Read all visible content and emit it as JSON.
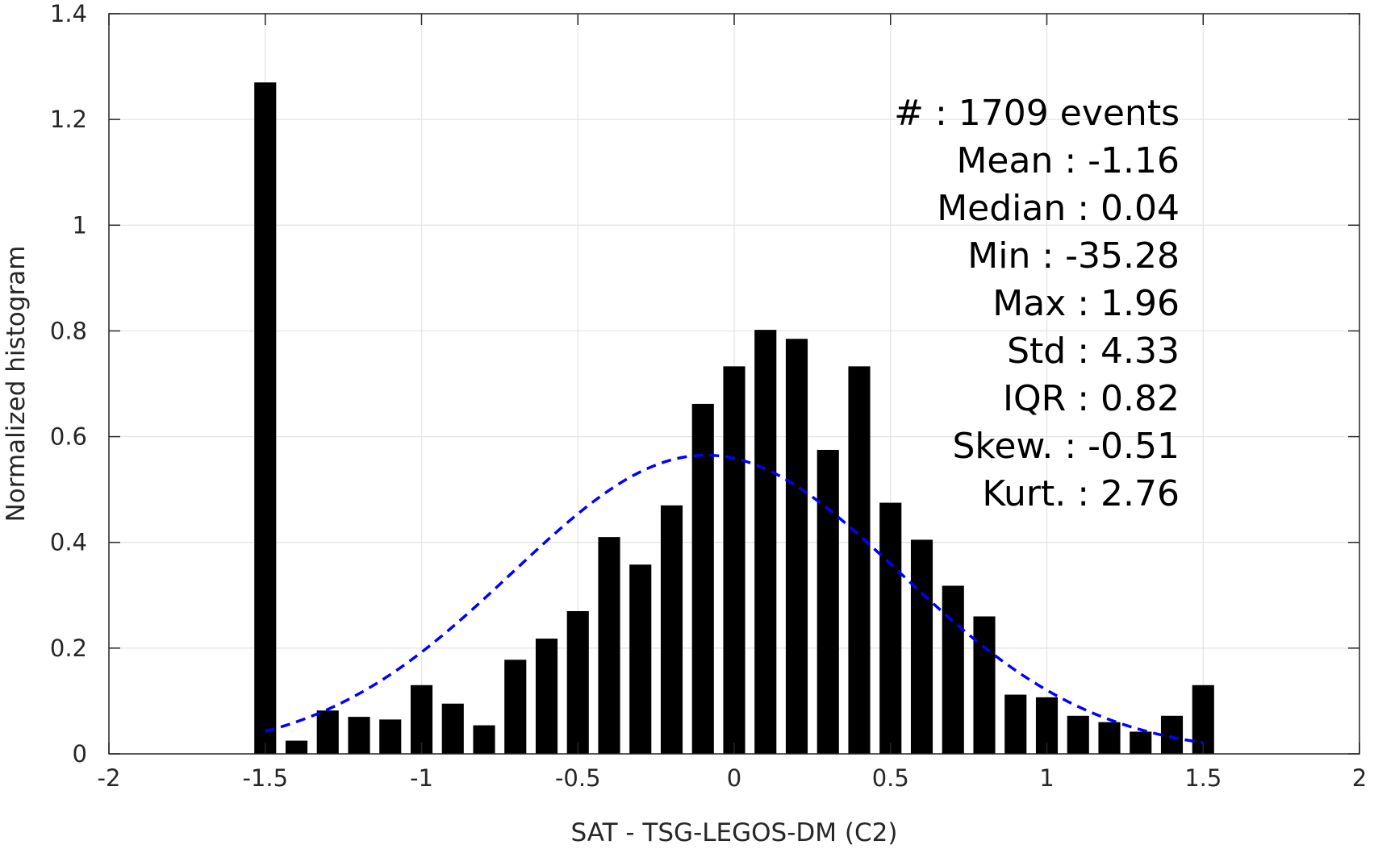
{
  "chart_data": {
    "type": "bar",
    "xlabel": "SAT - TSG-LEGOS-DM (C2)",
    "ylabel": "Normalized histogram",
    "xlim": [
      -2,
      2
    ],
    "ylim": [
      0,
      1.4
    ],
    "grid": true,
    "x_ticks": [
      {
        "value": -2,
        "label": "-2"
      },
      {
        "value": -1.5,
        "label": "-1.5"
      },
      {
        "value": -1,
        "label": "-1"
      },
      {
        "value": -0.5,
        "label": "-0.5"
      },
      {
        "value": 0,
        "label": "0"
      },
      {
        "value": 0.5,
        "label": "0.5"
      },
      {
        "value": 1,
        "label": "1"
      },
      {
        "value": 1.5,
        "label": "1.5"
      },
      {
        "value": 2,
        "label": "2"
      }
    ],
    "y_ticks": [
      {
        "value": 0,
        "label": "0"
      },
      {
        "value": 0.2,
        "label": "0.2"
      },
      {
        "value": 0.4,
        "label": "0.4"
      },
      {
        "value": 0.6,
        "label": "0.6"
      },
      {
        "value": 0.8,
        "label": "0.8"
      },
      {
        "value": 1,
        "label": "1"
      },
      {
        "value": 1.2,
        "label": "1.2"
      },
      {
        "value": 1.4,
        "label": "1.4"
      }
    ],
    "bars": {
      "color": "#000000",
      "bin_width": 0.1,
      "x": [
        -1.5,
        -1.4,
        -1.3,
        -1.2,
        -1.1,
        -1.0,
        -0.9,
        -0.8,
        -0.7,
        -0.6,
        -0.5,
        -0.4,
        -0.3,
        -0.2,
        -0.1,
        0.0,
        0.1,
        0.2,
        0.3,
        0.4,
        0.5,
        0.6,
        0.7,
        0.8,
        0.9,
        1.0,
        1.1,
        1.2,
        1.3,
        1.4,
        1.5
      ],
      "values": [
        1.27,
        0.025,
        0.082,
        0.07,
        0.065,
        0.13,
        0.095,
        0.054,
        0.178,
        0.218,
        0.27,
        0.41,
        0.358,
        0.47,
        0.662,
        0.733,
        0.802,
        0.785,
        0.575,
        0.733,
        0.475,
        0.405,
        0.318,
        0.26,
        0.112,
        0.107,
        0.072,
        0.06,
        0.042,
        0.072,
        0.13
      ]
    },
    "fit_curve": {
      "style": "dashed",
      "color": "#0000ff",
      "x_range": [
        -1.5,
        1.5
      ],
      "peak_y": 0.565,
      "peak_x": -0.09,
      "sigma": 0.62
    },
    "stats": [
      "#  : 1709 events",
      "Mean : -1.16",
      "Median : 0.04",
      "Min : -35.28",
      "Max : 1.96",
      "Std : 4.33",
      "IQR : 0.82",
      "Skew. : -0.51",
      "Kurt. : 2.76"
    ]
  }
}
